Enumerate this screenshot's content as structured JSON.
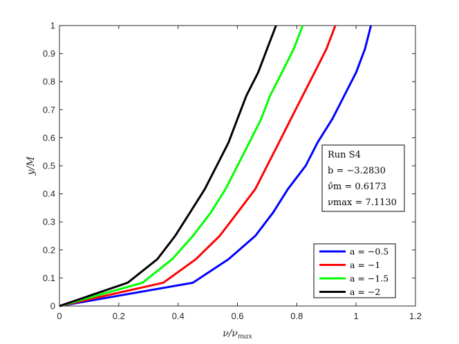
{
  "chart_data": {
    "type": "line",
    "xlabel": "ν/ν_max",
    "ylabel": "y/M",
    "xlim": [
      0,
      1.2
    ],
    "ylim": [
      0,
      1
    ],
    "x_ticks": [
      "0",
      "0.2",
      "0.4",
      "0.6",
      "0.8",
      "1",
      "1.2"
    ],
    "y_ticks": [
      "0",
      "0.1",
      "0.2",
      "0.3",
      "0.4",
      "0.5",
      "0.6",
      "0.7",
      "0.8",
      "0.9",
      "1"
    ],
    "grid": false,
    "legend_position": "bottom-right",
    "annotation": {
      "lines": [
        "Run S4",
        "b = −3.2830",
        "ν̂m = 0.6173",
        "νmax = 7.1130"
      ]
    },
    "series": [
      {
        "name": "a = −0.5",
        "color": "#0000ff",
        "points": [
          [
            0,
            0
          ],
          [
            0.45,
            0.083
          ],
          [
            0.57,
            0.167
          ],
          [
            0.66,
            0.25
          ],
          [
            0.72,
            0.333
          ],
          [
            0.77,
            0.417
          ],
          [
            0.83,
            0.5
          ],
          [
            0.87,
            0.583
          ],
          [
            0.92,
            0.667
          ],
          [
            0.96,
            0.75
          ],
          [
            1.0,
            0.833
          ],
          [
            1.03,
            0.917
          ],
          [
            1.05,
            1.0
          ]
        ]
      },
      {
        "name": "a = −1",
        "color": "#ff0000",
        "points": [
          [
            0,
            0
          ],
          [
            0.35,
            0.083
          ],
          [
            0.46,
            0.167
          ],
          [
            0.54,
            0.25
          ],
          [
            0.6,
            0.333
          ],
          [
            0.66,
            0.417
          ],
          [
            0.7,
            0.5
          ],
          [
            0.74,
            0.583
          ],
          [
            0.78,
            0.667
          ],
          [
            0.82,
            0.75
          ],
          [
            0.86,
            0.833
          ],
          [
            0.9,
            0.917
          ],
          [
            0.93,
            1.0
          ]
        ]
      },
      {
        "name": "a = −1.5",
        "color": "#00ff00",
        "points": [
          [
            0,
            0
          ],
          [
            0.28,
            0.083
          ],
          [
            0.38,
            0.167
          ],
          [
            0.45,
            0.25
          ],
          [
            0.51,
            0.333
          ],
          [
            0.56,
            0.417
          ],
          [
            0.6,
            0.5
          ],
          [
            0.64,
            0.583
          ],
          [
            0.68,
            0.667
          ],
          [
            0.71,
            0.75
          ],
          [
            0.75,
            0.833
          ],
          [
            0.79,
            0.917
          ],
          [
            0.82,
            1.0
          ]
        ]
      },
      {
        "name": "a = −2",
        "color": "#000000",
        "points": [
          [
            0,
            0
          ],
          [
            0.23,
            0.083
          ],
          [
            0.33,
            0.167
          ],
          [
            0.39,
            0.25
          ],
          [
            0.44,
            0.333
          ],
          [
            0.49,
            0.417
          ],
          [
            0.53,
            0.5
          ],
          [
            0.57,
            0.583
          ],
          [
            0.6,
            0.667
          ],
          [
            0.63,
            0.75
          ],
          [
            0.67,
            0.833
          ],
          [
            0.7,
            0.917
          ],
          [
            0.73,
            1.0
          ]
        ]
      }
    ]
  }
}
